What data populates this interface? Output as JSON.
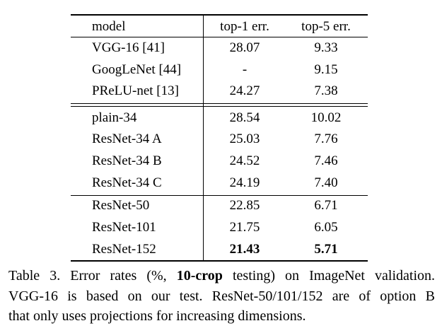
{
  "table": {
    "header": [
      "model",
      "top-1 err.",
      "top-5 err."
    ],
    "rows": [
      [
        "VGG-16 [41]",
        "28.07",
        "9.33"
      ],
      [
        "GoogLeNet [44]",
        "-",
        "9.15"
      ],
      [
        "PReLU-net [13]",
        "24.27",
        "7.38"
      ],
      [
        "plain-34",
        "28.54",
        "10.02"
      ],
      [
        "ResNet-34 A",
        "25.03",
        "7.76"
      ],
      [
        "ResNet-34 B",
        "24.52",
        "7.46"
      ],
      [
        "ResNet-34 C",
        "24.19",
        "7.40"
      ],
      [
        "ResNet-50",
        "22.85",
        "6.71"
      ],
      [
        "ResNet-101",
        "21.75",
        "6.05"
      ],
      [
        "ResNet-152",
        "21.43",
        "5.71"
      ]
    ]
  },
  "caption": {
    "line1_before": "Table 3. Error rates (%, ",
    "line1_bold": "10-crop",
    "line1_after": " testing) on ImageNet validation.",
    "line2": "VGG-16 is based on our test. ResNet-50/101/152 are of option B",
    "line3": "that only uses projections for increasing dimensions."
  }
}
